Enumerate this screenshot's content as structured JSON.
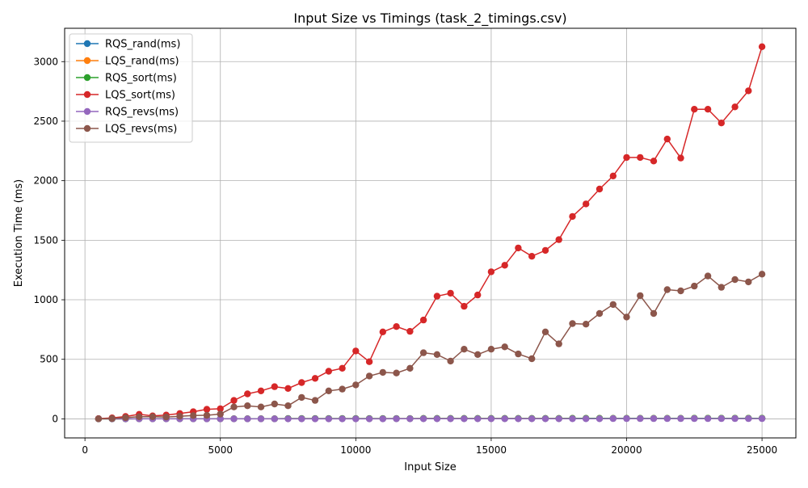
{
  "chart_data": {
    "type": "line",
    "title": "Input Size vs Timings (task_2_timings.csv)",
    "xlabel": "Input Size",
    "ylabel": "Execution Time (ms)",
    "xlim": [
      -750,
      26250
    ],
    "ylim": [
      -160,
      3280
    ],
    "xticks": [
      0,
      5000,
      10000,
      15000,
      20000,
      25000
    ],
    "yticks": [
      0,
      500,
      1000,
      1500,
      2000,
      2500,
      3000
    ],
    "grid": true,
    "legend_position": "top-left",
    "x": [
      500,
      1000,
      1500,
      2000,
      2500,
      3000,
      3500,
      4000,
      4500,
      5000,
      5500,
      6000,
      6500,
      7000,
      7500,
      8000,
      8500,
      9000,
      9500,
      10000,
      10500,
      11000,
      11500,
      12000,
      12500,
      13000,
      13500,
      14000,
      14500,
      15000,
      15500,
      16000,
      16500,
      17000,
      17500,
      18000,
      18500,
      19000,
      19500,
      20000,
      20500,
      21000,
      21500,
      22000,
      22500,
      23000,
      23500,
      24000,
      24500,
      25000
    ],
    "series": [
      {
        "name": "RQS_rand(ms)",
        "color": "#1f77b4",
        "values": [
          0,
          0,
          0,
          1,
          1,
          1,
          1,
          1,
          1,
          1,
          1,
          1,
          1,
          1,
          2,
          2,
          2,
          2,
          2,
          2,
          2,
          2,
          2,
          2,
          3,
          3,
          3,
          3,
          3,
          3,
          3,
          3,
          3,
          3,
          3,
          4,
          4,
          4,
          4,
          4,
          4,
          4,
          4,
          4,
          5,
          5,
          5,
          5,
          5,
          5
        ]
      },
      {
        "name": "LQS_rand(ms)",
        "color": "#ff7f0e",
        "values": [
          0,
          0,
          0,
          1,
          1,
          1,
          1,
          1,
          1,
          1,
          1,
          1,
          1,
          1,
          2,
          2,
          2,
          2,
          2,
          2,
          2,
          2,
          2,
          2,
          3,
          3,
          3,
          3,
          3,
          3,
          3,
          3,
          3,
          3,
          3,
          4,
          4,
          4,
          4,
          4,
          4,
          4,
          4,
          4,
          5,
          5,
          5,
          5,
          5,
          5
        ]
      },
      {
        "name": "RQS_sort(ms)",
        "color": "#2ca02c",
        "values": [
          0,
          0,
          0,
          1,
          1,
          1,
          1,
          1,
          1,
          1,
          1,
          1,
          1,
          1,
          2,
          2,
          2,
          2,
          2,
          2,
          2,
          2,
          2,
          2,
          3,
          3,
          3,
          3,
          3,
          3,
          3,
          3,
          3,
          3,
          3,
          4,
          4,
          4,
          4,
          4,
          4,
          4,
          4,
          4,
          5,
          5,
          5,
          5,
          5,
          5
        ]
      },
      {
        "name": "LQS_sort(ms)",
        "color": "#d62728",
        "values": [
          2,
          8,
          20,
          38,
          25,
          32,
          45,
          60,
          80,
          85,
          155,
          210,
          235,
          270,
          255,
          305,
          340,
          400,
          425,
          570,
          480,
          730,
          775,
          735,
          830,
          1030,
          1055,
          945,
          1040,
          1235,
          1290,
          1435,
          1365,
          1415,
          1505,
          1700,
          1805,
          1930,
          2040,
          2195,
          2195,
          2165,
          2350,
          2190,
          2600,
          2600,
          2485,
          2620,
          2755,
          3125
        ]
      },
      {
        "name": "RQS_revs(ms)",
        "color": "#9467bd",
        "values": [
          0,
          0,
          0,
          0,
          0,
          0,
          0,
          0,
          0,
          0,
          0,
          0,
          0,
          0,
          0,
          0,
          0,
          0,
          0,
          0,
          0,
          0,
          1,
          1,
          1,
          1,
          1,
          1,
          1,
          1,
          1,
          1,
          1,
          1,
          1,
          1,
          1,
          1,
          2,
          2,
          2,
          2,
          2,
          2,
          2,
          2,
          2,
          2,
          2,
          2
        ]
      },
      {
        "name": "LQS_revs(ms)",
        "color": "#8c564b",
        "values": [
          1,
          3,
          10,
          18,
          18,
          16,
          22,
          28,
          30,
          40,
          100,
          110,
          100,
          125,
          110,
          180,
          155,
          235,
          250,
          285,
          360,
          390,
          385,
          425,
          555,
          540,
          485,
          585,
          540,
          585,
          605,
          545,
          505,
          730,
          630,
          800,
          795,
          885,
          960,
          855,
          1035,
          885,
          1085,
          1075,
          1115,
          1200,
          1105,
          1170,
          1150,
          1215
        ]
      }
    ]
  }
}
